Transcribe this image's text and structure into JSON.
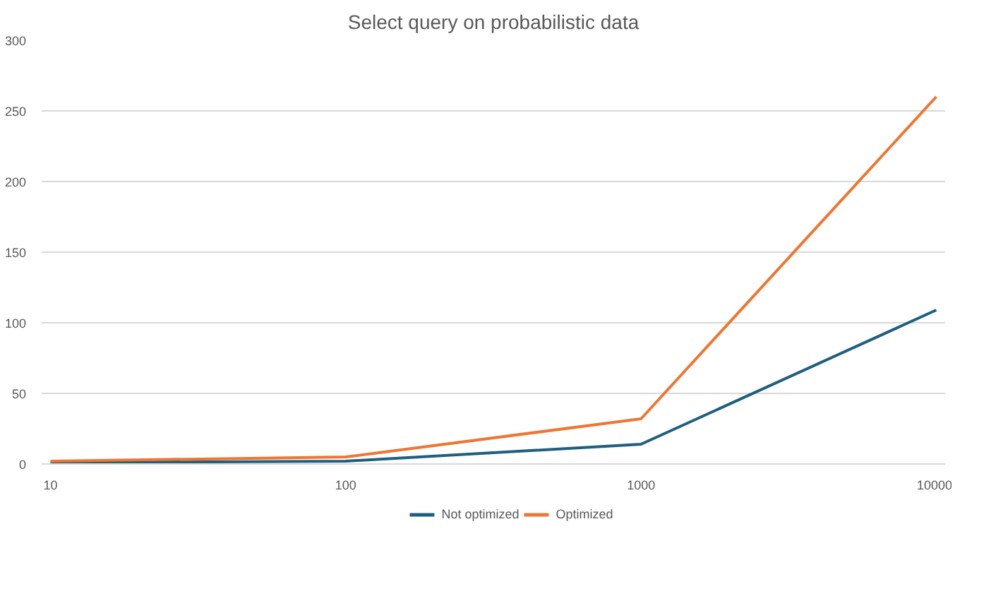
{
  "chart_data": {
    "type": "line",
    "title": "Select query on probabilistic data",
    "categories": [
      "10",
      "100",
      "1000",
      "10000"
    ],
    "series": [
      {
        "name": "Not optimized",
        "color": "#1f5f7f",
        "values": [
          1,
          2,
          14,
          109
        ]
      },
      {
        "name": "Optimized",
        "color": "#ee7633",
        "values": [
          2,
          5,
          32,
          260
        ]
      }
    ],
    "ylim": [
      0,
      300
    ],
    "yticks": [
      0,
      50,
      100,
      150,
      200,
      250,
      300
    ],
    "grid": "y",
    "legend": "bottom",
    "marker": "none",
    "line_style": "solid"
  }
}
